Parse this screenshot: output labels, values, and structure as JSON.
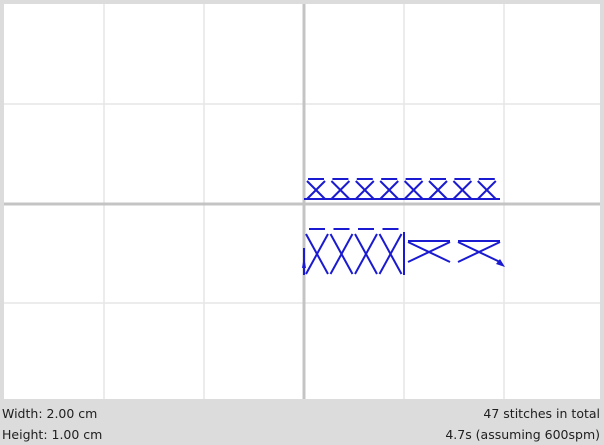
{
  "window": {
    "background": "#ffffff",
    "frame_color": "#dcdcdc",
    "grid_color": "#e6e6e6",
    "axis_color": "#c4c4c4",
    "stitch_color": "#1a1ad0"
  },
  "canvas": {
    "view": "stitch-preview",
    "stitch_type": "cross-stitch",
    "rows": [
      {
        "name": "upper-row",
        "pattern": "cross",
        "count": 8
      },
      {
        "name": "lower-row",
        "pattern": "tall-cross",
        "count": 4
      },
      {
        "name": "lower-row-tail",
        "pattern": "wide-cross",
        "count": 2
      }
    ]
  },
  "status_bar": {
    "width_text": "Width: 2.00 cm",
    "height_text": "Height: 1.00 cm",
    "stitches_text": "47 stitches in total",
    "time_text": "4.7s (assuming 600spm)"
  }
}
